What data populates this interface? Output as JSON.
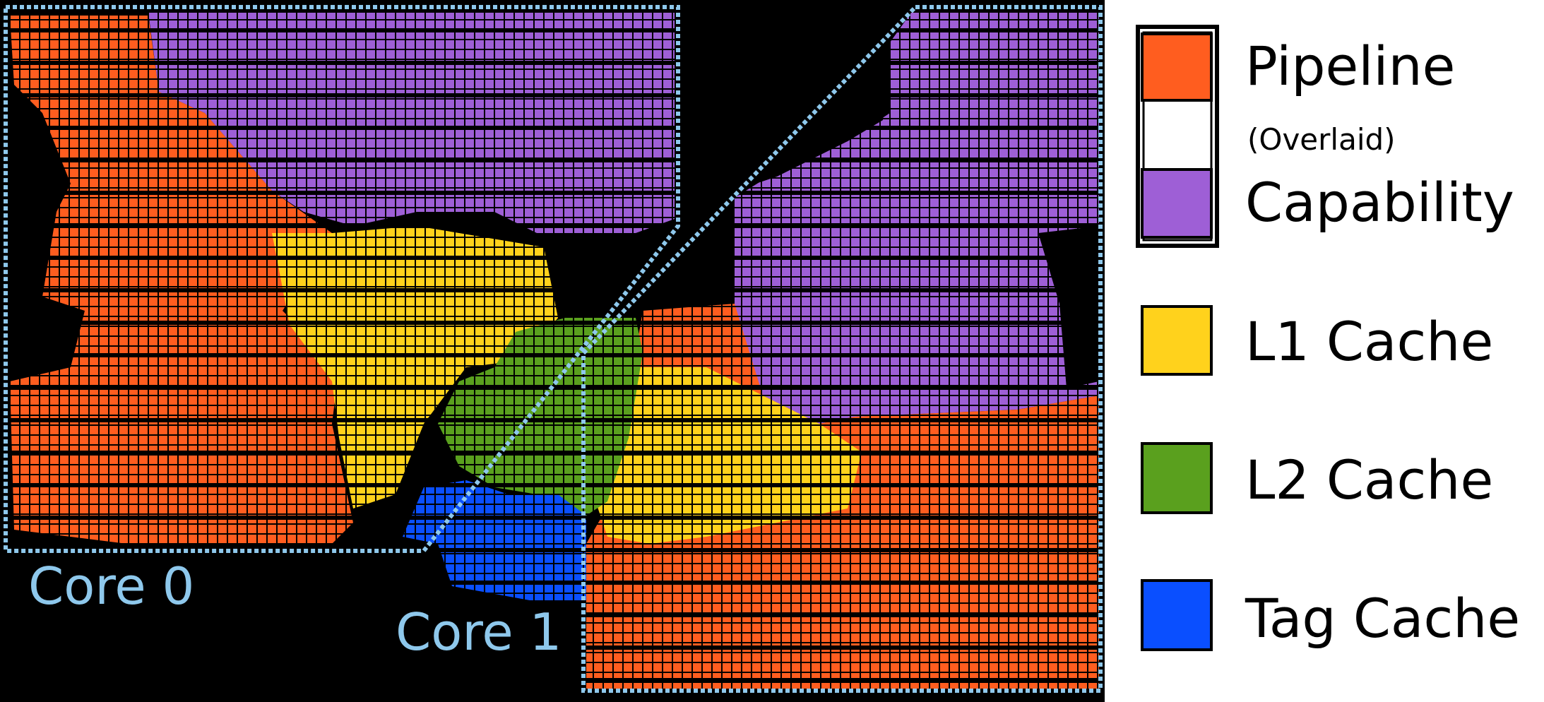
{
  "core_labels": {
    "core0": "Core 0",
    "core1": "Core 1"
  },
  "legend": {
    "pipeline": "Pipeline",
    "overlaid": "(Overlaid)",
    "capability": "Capability",
    "l1": "L1 Cache",
    "l2": "L2 Cache",
    "tag": "Tag Cache"
  },
  "colors": {
    "pipeline": "#ff5d1f",
    "capability": "#9e5fd6",
    "l1": "#ffd21c",
    "l2": "#5aa01e",
    "tag": "#0a4fff",
    "outline": "#8ec8ec",
    "background": "#000000"
  }
}
